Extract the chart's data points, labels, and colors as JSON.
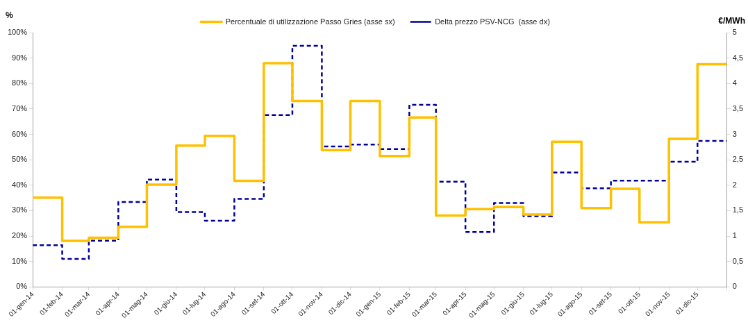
{
  "chart_data": {
    "type": "step",
    "ylabel": "%",
    "y2label": "€/MWh",
    "x": [
      "2014-01",
      "2014-02",
      "2014-03",
      "2014-04",
      "2014-05",
      "2014-06",
      "2014-07",
      "2014-08",
      "2014-09",
      "2014-10",
      "2014-11",
      "2014-12",
      "2015-01",
      "2015-02",
      "2015-03",
      "2015-04",
      "2015-05",
      "2015-06",
      "2015-07",
      "2015-08",
      "2015-09",
      "2015-10",
      "2015-11",
      "2015-12",
      "2016-01"
    ],
    "series": [
      {
        "name": "Percentuale di utilizzazione Passo Gries (asse sx)",
        "color": "#ffc000",
        "line_style": "solid",
        "values": [
          35.1,
          18.1,
          19.3,
          23.6,
          40.2,
          55.6,
          59.4,
          41.7,
          88.0,
          73.1,
          53.8,
          73.1,
          51.5,
          66.6,
          28.1,
          30.6,
          31.4,
          28.5,
          57.1,
          31.0,
          38.6,
          25.4,
          58.2,
          87.6,
          87.6
        ]
      },
      {
        "name": "Delta prezzo PSV-NCG  (asse dx)",
        "color": "#000099",
        "line_style": "dashed",
        "axis": "y2",
        "values": [
          0.82,
          0.55,
          0.91,
          1.67,
          2.11,
          1.47,
          1.3,
          1.73,
          3.38,
          4.74,
          2.76,
          2.8,
          2.71,
          3.58,
          2.07,
          1.08,
          1.65,
          1.39,
          2.25,
          1.94,
          2.09,
          2.09,
          2.46,
          2.87,
          2.87
        ]
      }
    ],
    "xlim": [
      "2014-01",
      "2016-01"
    ],
    "xticks": [
      {
        "value": "2014-01",
        "label": "01-gen-14"
      },
      {
        "value": "2014-02",
        "label": "01-feb-14"
      },
      {
        "value": "2014-03",
        "label": "01-mar-14"
      },
      {
        "value": "2014-04",
        "label": "01-apr-14"
      },
      {
        "value": "2014-05",
        "label": "01-mag-14"
      },
      {
        "value": "2014-06",
        "label": "01-giu-14"
      },
      {
        "value": "2014-07",
        "label": "01-lug-14"
      },
      {
        "value": "2014-08",
        "label": "01-ago-14"
      },
      {
        "value": "2014-09",
        "label": "01-set-14"
      },
      {
        "value": "2014-10",
        "label": "01-ott-14"
      },
      {
        "value": "2014-11",
        "label": "01-nov-14"
      },
      {
        "value": "2014-12",
        "label": "01-dic-14"
      },
      {
        "value": "2015-01",
        "label": "01-gen-15"
      },
      {
        "value": "2015-02",
        "label": "01-feb-15"
      },
      {
        "value": "2015-03",
        "label": "01-mar-15"
      },
      {
        "value": "2015-04",
        "label": "01-apr-15"
      },
      {
        "value": "2015-05",
        "label": "01-mag-15"
      },
      {
        "value": "2015-06",
        "label": "01-giu-15"
      },
      {
        "value": "2015-07",
        "label": "01-lug-15"
      },
      {
        "value": "2015-08",
        "label": "01-ago-15"
      },
      {
        "value": "2015-09",
        "label": "01-set-15"
      },
      {
        "value": "2015-10",
        "label": "01-ott-15"
      },
      {
        "value": "2015-11",
        "label": "01-nov-15"
      },
      {
        "value": "2015-12",
        "label": "01-dic-15"
      },
      {
        "value": "2016-01",
        "label": null
      }
    ],
    "ylim": [
      0,
      100
    ],
    "yticks": [
      {
        "value": 0,
        "label": "0%"
      },
      {
        "value": 10,
        "label": "10%"
      },
      {
        "value": 20,
        "label": "20%"
      },
      {
        "value": 30,
        "label": "30%"
      },
      {
        "value": 40,
        "label": "40%"
      },
      {
        "value": 50,
        "label": "50%"
      },
      {
        "value": 60,
        "label": "60%"
      },
      {
        "value": 70,
        "label": "70%"
      },
      {
        "value": 80,
        "label": "80%"
      },
      {
        "value": 90,
        "label": "90%"
      },
      {
        "value": 100,
        "label": "100%"
      }
    ],
    "y2lim": [
      0,
      5
    ],
    "y2ticks": [
      0,
      {
        "value": 0.5,
        "label": "0,5"
      },
      1,
      {
        "value": 1.5,
        "label": "1,5"
      },
      2,
      {
        "value": 2.5,
        "label": "2,5"
      },
      3,
      {
        "value": 3.5,
        "label": "3,5"
      },
      4,
      {
        "value": 4.5,
        "label": "4,5"
      },
      5
    ],
    "grid": false,
    "legend": "top",
    "marker": "none"
  }
}
